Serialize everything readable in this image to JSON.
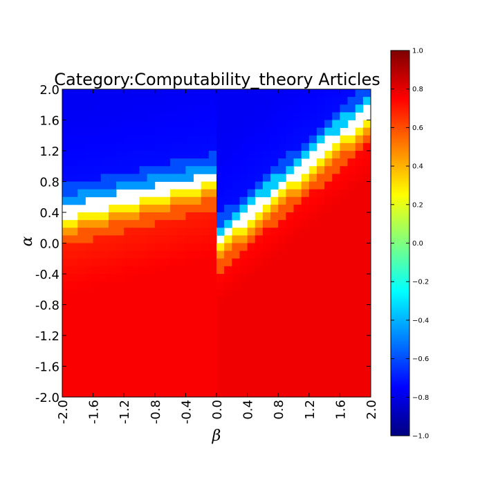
{
  "chart_data": {
    "type": "heatmap",
    "title": "Category:Computability_theory Articles",
    "xlabel": "β",
    "ylabel": "α",
    "x_range": [
      -2.0,
      2.0
    ],
    "y_range": [
      -2.0,
      2.0
    ],
    "grid_size": 40,
    "x_ticks": [
      "-2.0",
      "-1.6",
      "-1.2",
      "-0.8",
      "-0.4",
      "0.0",
      "0.4",
      "0.8",
      "1.2",
      "1.6",
      "2.0"
    ],
    "y_ticks": [
      "2.0",
      "1.6",
      "1.2",
      "0.8",
      "0.4",
      "0.0",
      "-0.4",
      "-0.8",
      "-1.2",
      "-1.6",
      "-2.0"
    ],
    "colorbar": {
      "range": [
        -1.0,
        1.0
      ],
      "ticks": [
        "1.0",
        "0.8",
        "0.6",
        "0.4",
        "0.2",
        "0.0",
        "−0.2",
        "−0.4",
        "−0.6",
        "−0.8",
        "−1.0"
      ],
      "colormap": "jet"
    },
    "description_of_field": "Blue region (about -0.75) in upper area where alpha exceeds about 0.4 + 0.5*beta on the left and about 0.8*beta near the origin; a white gap (undefined) band separates it from the red/orange region (about 0.6 to 0.8) below; yellow-green edge cells (about 0.2 to 0.35) line the lower side of the gap."
  }
}
